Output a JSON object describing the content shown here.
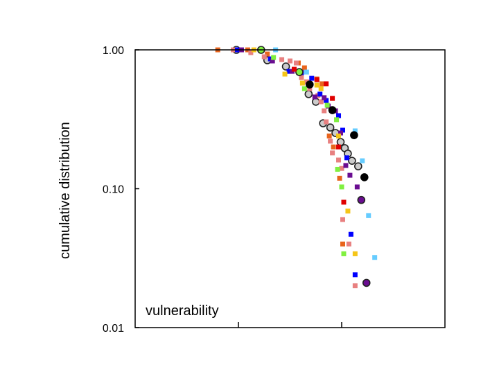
{
  "chart_data": {
    "type": "scatter",
    "title": "",
    "xlabel": "",
    "ylabel": "cumulative distribution",
    "annotation": "vulnerability",
    "yscale": "log",
    "ylim": [
      0.01,
      1.0
    ],
    "xlim": [
      0,
      3
    ],
    "yticks": [
      {
        "value": 1.0,
        "label": "1.00"
      },
      {
        "value": 0.1,
        "label": "0.10"
      },
      {
        "value": 0.01,
        "label": "0.01"
      }
    ],
    "xticks": [
      1,
      2
    ],
    "grid": false,
    "legend": "none",
    "series": [
      {
        "name": "gray-circles",
        "marker": "circle",
        "color": "#cccccc",
        "edge": "#222222",
        "points": [
          [
            0.98,
            1.0
          ],
          [
            1.28,
            0.842
          ],
          [
            1.46,
            0.759
          ],
          [
            1.68,
            0.48
          ],
          [
            1.75,
            0.423
          ],
          [
            1.82,
            0.296
          ],
          [
            1.89,
            0.276
          ],
          [
            1.94,
            0.252
          ],
          [
            1.99,
            0.217
          ],
          [
            2.03,
            0.196
          ],
          [
            2.06,
            0.179
          ],
          [
            2.1,
            0.159
          ],
          [
            2.16,
            0.145
          ]
        ]
      },
      {
        "name": "orange",
        "marker": "square",
        "color": "#e8641c",
        "points": [
          [
            0.8,
            1.0
          ],
          [
            1.09,
            1.0
          ],
          [
            1.28,
            0.933
          ],
          [
            1.58,
            0.804
          ],
          [
            1.64,
            0.742
          ],
          [
            1.76,
            0.617
          ],
          [
            1.81,
            0.57
          ],
          [
            1.88,
            0.24
          ],
          [
            1.92,
            0.2
          ],
          [
            1.98,
            0.119
          ],
          [
            2.01,
            0.04
          ]
        ]
      },
      {
        "name": "pink",
        "marker": "square",
        "color": "#e88080",
        "points": [
          [
            0.95,
            1.0
          ],
          [
            1.12,
            0.955
          ],
          [
            1.25,
            0.892
          ],
          [
            1.42,
            0.851
          ],
          [
            1.5,
            0.832
          ],
          [
            1.56,
            0.804
          ],
          [
            1.61,
            0.632
          ],
          [
            1.66,
            0.589
          ],
          [
            1.69,
            0.526
          ],
          [
            1.77,
            0.469
          ],
          [
            1.8,
            0.423
          ],
          [
            1.83,
            0.364
          ],
          [
            1.85,
            0.303
          ],
          [
            1.89,
            0.22
          ],
          [
            1.91,
            0.181
          ],
          [
            1.97,
            0.161
          ],
          [
            2.0,
            0.14
          ],
          [
            2.01,
            0.06
          ],
          [
            2.07,
            0.04
          ],
          [
            2.13,
            0.02
          ]
        ]
      },
      {
        "name": "blue",
        "marker": "square",
        "color": "#0000ff",
        "points": [
          [
            0.99,
            1.0
          ],
          [
            1.31,
            0.861
          ],
          [
            1.49,
            0.7
          ],
          [
            1.61,
            0.685
          ],
          [
            1.71,
            0.624
          ],
          [
            1.79,
            0.48
          ],
          [
            1.85,
            0.432
          ],
          [
            1.97,
            0.336
          ],
          [
            2.01,
            0.264
          ],
          [
            2.05,
            0.167
          ],
          [
            2.09,
            0.047
          ],
          [
            2.13,
            0.024
          ]
        ]
      },
      {
        "name": "purple",
        "marker": "square",
        "color": "#6a0d91",
        "points": [
          [
            1.03,
            1.0
          ],
          [
            1.33,
            0.832
          ],
          [
            1.52,
            0.7
          ],
          [
            1.74,
            0.458
          ],
          [
            1.83,
            0.453
          ],
          [
            1.87,
            0.394
          ],
          [
            1.94,
            0.364
          ],
          [
            1.99,
            0.252
          ],
          [
            2.04,
            0.147
          ],
          [
            2.08,
            0.125
          ],
          [
            2.15,
            0.103
          ]
        ]
      },
      {
        "name": "purple-circles",
        "marker": "circle",
        "color": "#6a0d91",
        "edge": "#222222",
        "points": [
          [
            2.19,
            0.083
          ],
          [
            2.24,
            0.021
          ]
        ]
      },
      {
        "name": "yellow",
        "marker": "square",
        "color": "#f5c518",
        "points": [
          [
            1.15,
            1.0
          ],
          [
            1.45,
            0.669
          ],
          [
            1.62,
            0.576
          ],
          [
            1.76,
            0.557
          ],
          [
            1.8,
            0.526
          ],
          [
            1.97,
            0.24
          ],
          [
            2.06,
            0.069
          ],
          [
            2.13,
            0.034
          ]
        ]
      },
      {
        "name": "green",
        "marker": "square",
        "color": "#80f040",
        "points": [
          [
            1.34,
            0.881
          ],
          [
            1.64,
            0.526
          ],
          [
            1.86,
            0.399
          ],
          [
            1.95,
            0.314
          ],
          [
            1.96,
            0.138
          ],
          [
            2.0,
            0.103
          ],
          [
            2.02,
            0.034
          ]
        ]
      },
      {
        "name": "green-circles",
        "marker": "circle",
        "color": "#80f040",
        "edge": "#222222",
        "points": [
          [
            1.22,
            1.0
          ],
          [
            1.59,
            0.692
          ]
        ]
      },
      {
        "name": "light-blue",
        "marker": "square",
        "color": "#66ccff",
        "points": [
          [
            1.36,
            1.0
          ],
          [
            1.66,
            0.692
          ],
          [
            2.13,
            0.261
          ],
          [
            2.2,
            0.159
          ],
          [
            2.26,
            0.064
          ],
          [
            2.32,
            0.032
          ]
        ]
      },
      {
        "name": "red",
        "marker": "square",
        "color": "#e00000",
        "points": [
          [
            1.54,
            0.725
          ],
          [
            1.76,
            0.61
          ],
          [
            1.85,
            0.57
          ],
          [
            1.91,
            0.447
          ],
          [
            1.97,
            0.2
          ],
          [
            2.02,
            0.08
          ]
        ]
      },
      {
        "name": "black",
        "marker": "circle",
        "color": "#000000",
        "edge": "#000000",
        "points": [
          [
            1.69,
            0.563
          ],
          [
            1.91,
            0.368
          ],
          [
            2.12,
            0.243
          ],
          [
            2.22,
            0.121
          ]
        ]
      }
    ]
  }
}
